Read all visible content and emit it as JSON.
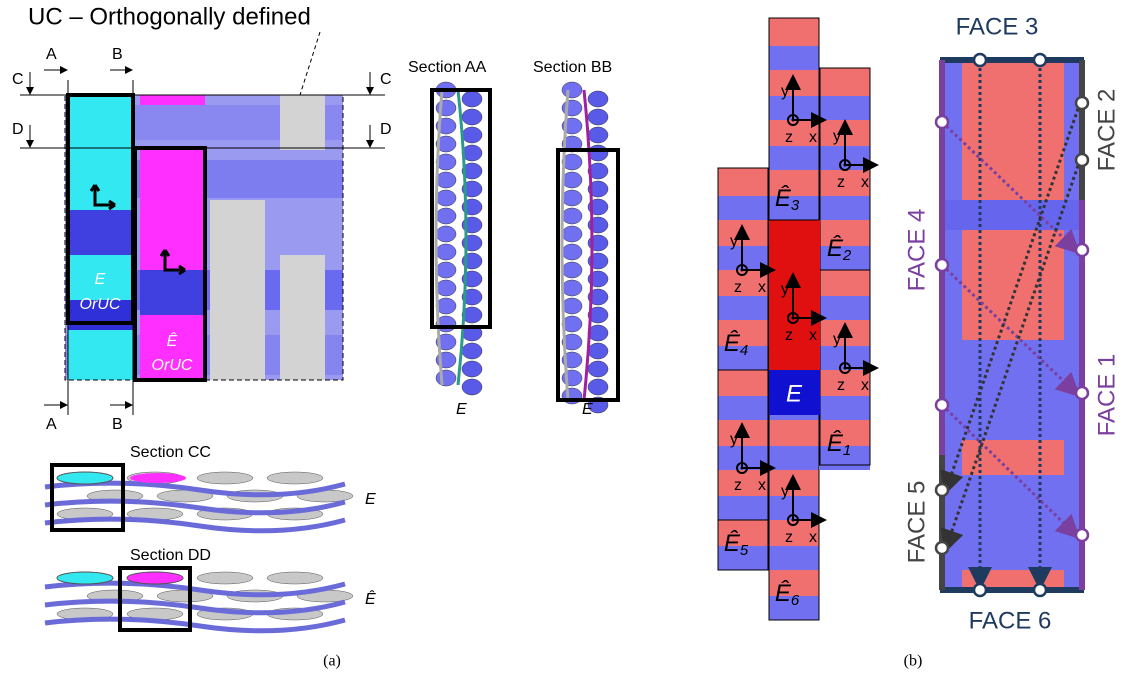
{
  "panel_a": {
    "title": "UC – Orthogonally defined",
    "cut_labels": [
      "A",
      "B",
      "C",
      "D"
    ],
    "cell_e": "E",
    "cell_e_hat": "Ê",
    "cell_tag": "OrUC",
    "sections": [
      "Section AA",
      "Section BB",
      "Section CC",
      "Section DD"
    ],
    "caption": "(a)"
  },
  "panel_b": {
    "center_cell": "E",
    "neighbor_label": "Ê",
    "neighbor_subs": [
      "1",
      "2",
      "3",
      "4",
      "5",
      "6"
    ],
    "axes": [
      "x",
      "y",
      "z"
    ],
    "faces": [
      "FACE 1",
      "FACE 2",
      "FACE 3",
      "FACE 4",
      "FACE 5",
      "FACE 6"
    ],
    "caption": "(b)"
  }
}
